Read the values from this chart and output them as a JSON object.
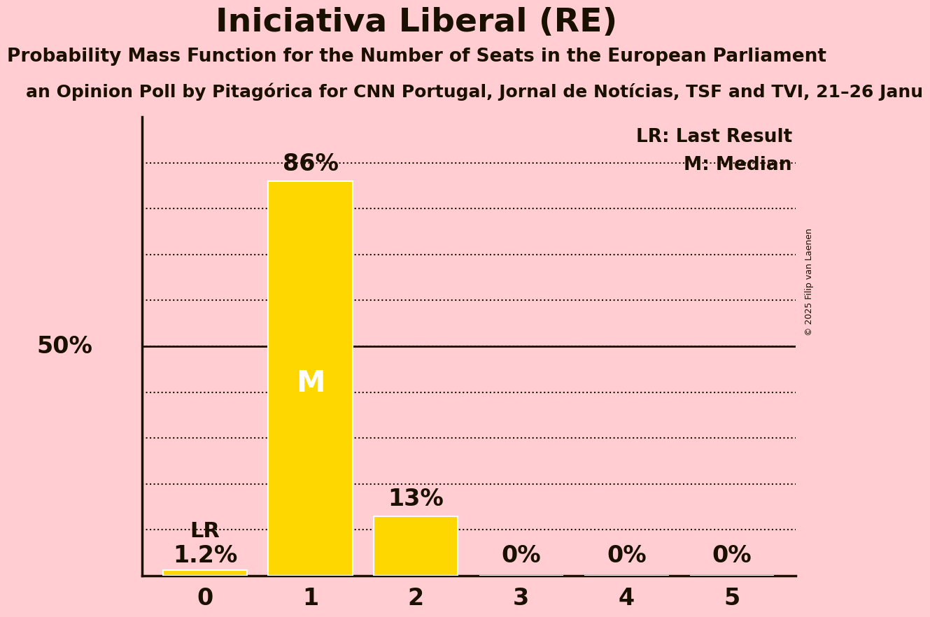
{
  "title": "Iniciativa Liberal (RE)",
  "subtitle": "Probability Mass Function for the Number of Seats in the European Parliament",
  "poll_line": "an Opinion Poll by Pitagórica for CNN Portugal, Jornal de Notícias, TSF and TVI, 21–26 Janu",
  "copyright": "© 2025 Filip van Laenen",
  "categories": [
    0,
    1,
    2,
    3,
    4,
    5
  ],
  "values": [
    0.012,
    0.86,
    0.13,
    0.0,
    0.0,
    0.0
  ],
  "bar_color": "#FFD700",
  "bar_edge_color": "#FFFFFF",
  "background_color": "#FFCDD2",
  "text_color": "#1a1000",
  "title_fontsize": 34,
  "subtitle_fontsize": 19,
  "poll_fontsize": 18,
  "legend_lr": "LR: Last Result",
  "legend_m": "M: Median",
  "ylim": [
    0,
    1.0
  ],
  "grid_levels": [
    0.1,
    0.2,
    0.3,
    0.4,
    0.5,
    0.6,
    0.7,
    0.8,
    0.9
  ],
  "bar_labels": [
    "1.2%",
    "86%",
    "13%",
    "0%",
    "0%",
    "0%"
  ]
}
